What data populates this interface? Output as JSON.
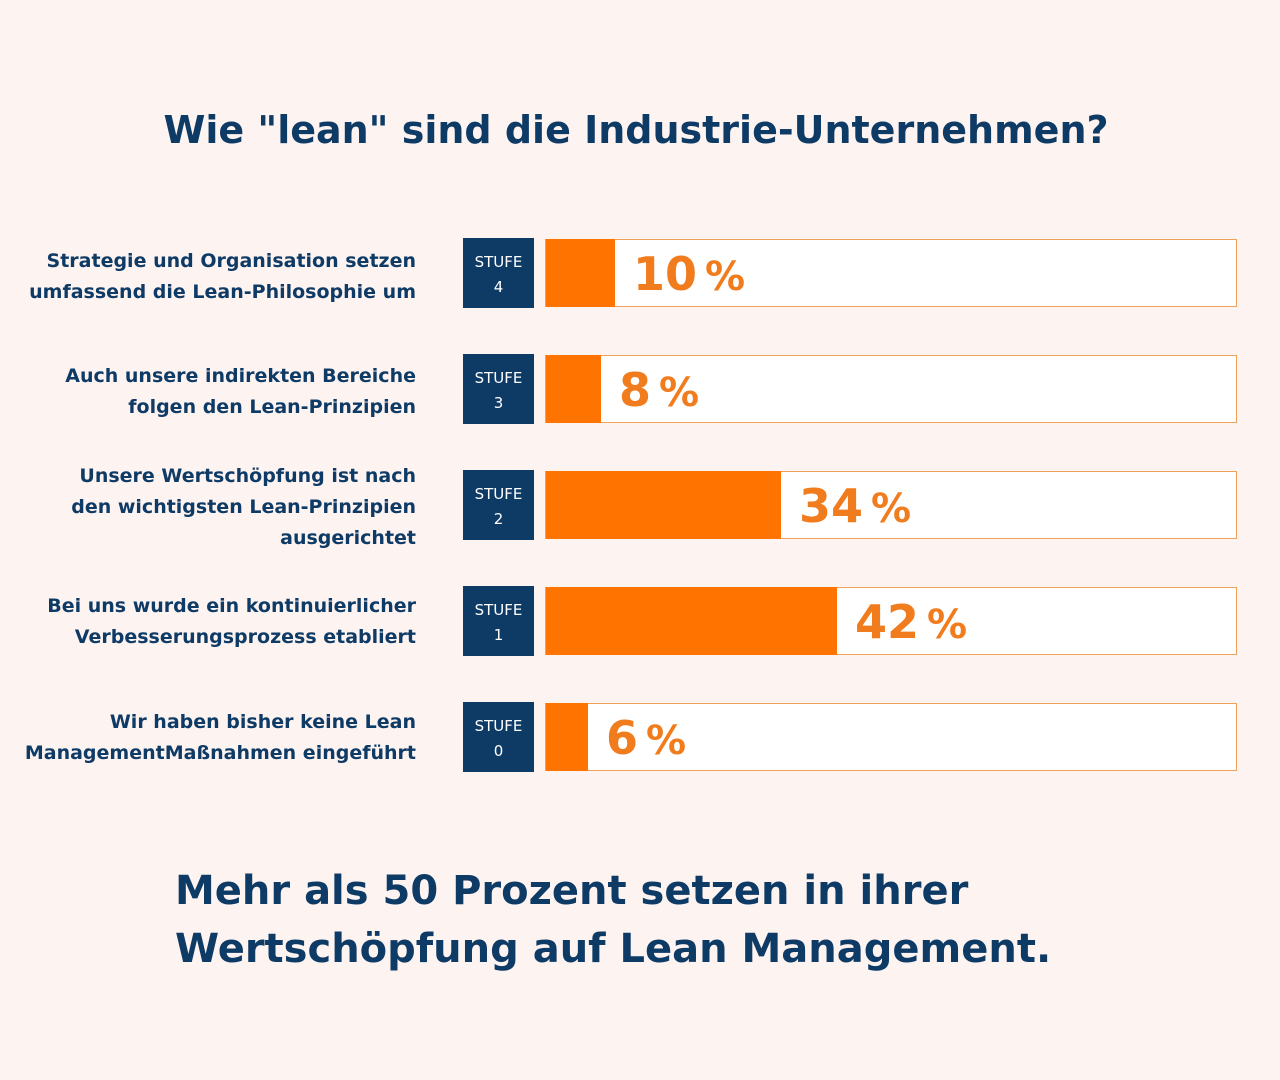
{
  "header": {
    "title": "Wie \"lean\" sind die Industrie-Unternehmen?"
  },
  "chart_data": {
    "type": "bar",
    "orientation": "horizontal",
    "title": "Wie \"lean\" sind die Industrie-Unternehmen?",
    "unit": "%",
    "xlim": [
      0,
      100
    ],
    "categories": [
      "Strategie und Organisation setzen umfassend die Lean-Philosophie um",
      "Auch unsere indirekten Bereiche folgen den Lean-Prinzipien",
      "Unsere Wertschöpfung ist nach den wichtigsten Lean-Prinzipien ausgerichtet",
      "Bei uns wurde ein kontinuierlicher Verbesserungsprozess etabliert",
      "Wir haben bisher keine Lean ManagementMaßnahmen eingeführt"
    ],
    "values": [
      10,
      8,
      34,
      42,
      6
    ],
    "rows": [
      {
        "label_lines": [
          "Strategie und Organisation setzen",
          "umfassend die Lean-Philosophie um"
        ],
        "badge_word": "STUFE",
        "badge_num": "4",
        "value": 10,
        "value_text": "10",
        "pct_sign": "%"
      },
      {
        "label_lines": [
          "Auch unsere indirekten Bereiche",
          "folgen den Lean-Prinzipien"
        ],
        "badge_word": "STUFE",
        "badge_num": "3",
        "value": 8,
        "value_text": "8",
        "pct_sign": "%"
      },
      {
        "label_lines": [
          "Unsere Wertschöpfung ist nach",
          "den wichtigsten Lean-Prinzipien",
          "ausgerichtet"
        ],
        "badge_word": "STUFE",
        "badge_num": "2",
        "value": 34,
        "value_text": "34",
        "pct_sign": "%"
      },
      {
        "label_lines": [
          "Bei uns wurde ein kontinuierlicher",
          "Verbesserungsprozess etabliert"
        ],
        "badge_word": "STUFE",
        "badge_num": "1",
        "value": 42,
        "value_text": "42",
        "pct_sign": "%"
      },
      {
        "label_lines": [
          "Wir haben bisher keine Lean",
          "ManagementMaßnahmen eingeführt"
        ],
        "badge_word": "STUFE",
        "badge_num": "0",
        "value": 6,
        "value_text": "6",
        "pct_sign": "%"
      }
    ]
  },
  "footer": {
    "line1": "Mehr als 50 Prozent setzen in ihrer",
    "line2": "Wertschöpfung auf Lean Management."
  },
  "colors": {
    "background": "#fdf3f0",
    "navy": "#0e3a66",
    "orange": "#ff7300",
    "value_text": "#f07c1d",
    "track_border": "#f2a15a"
  }
}
